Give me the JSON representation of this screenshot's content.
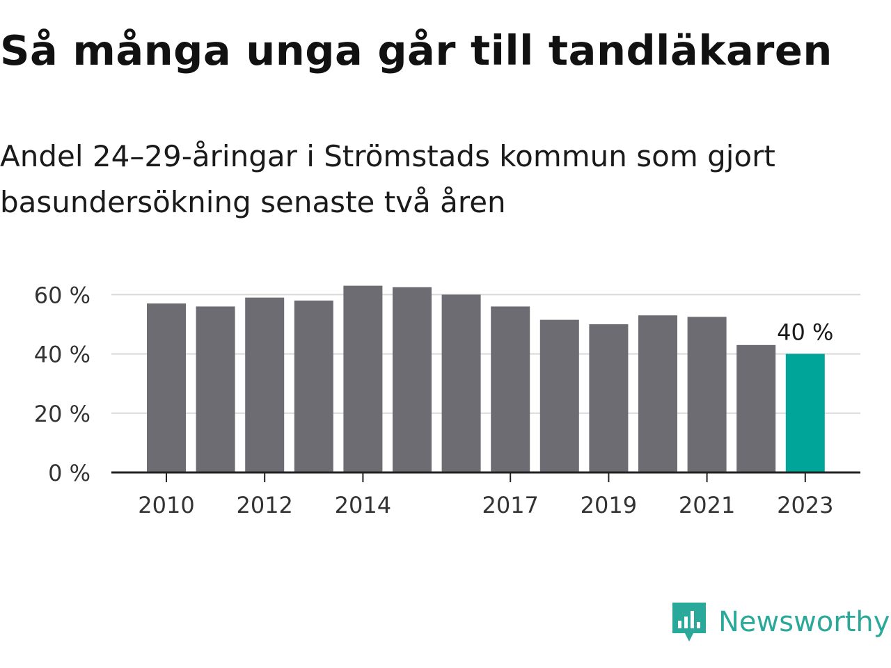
{
  "title": "Så många unga går till tandläkaren",
  "subtitle": "Andel 24–29-åringar i Strömstads kommun som gjort basundersökning senaste två åren",
  "brand": {
    "name": "Newsworthy",
    "color": "#2aa89a"
  },
  "colors": {
    "bar": "#6d6c72",
    "highlight": "#00a59a",
    "grid": "#d9d9d9",
    "axis": "#222222",
    "text": "#333333"
  },
  "chart_data": {
    "type": "bar",
    "categories": [
      "2010",
      "2011",
      "2012",
      "2013",
      "2014",
      "2015",
      "2016",
      "2017",
      "2018",
      "2019",
      "2020",
      "2021",
      "2022",
      "2023"
    ],
    "values": [
      57,
      56,
      59,
      58,
      63,
      62.5,
      60,
      56,
      51.5,
      50,
      53,
      52.5,
      43,
      40
    ],
    "x_tick_labels": [
      "2010",
      "2012",
      "2014",
      "2017",
      "2019",
      "2021",
      "2023"
    ],
    "y_ticks": [
      0,
      20,
      40,
      60
    ],
    "y_tick_labels": [
      "0 %",
      "20 %",
      "40 %",
      "60 %"
    ],
    "ylim": [
      0,
      60
    ],
    "grid": true,
    "highlight_category": "2023",
    "annotation": "40 %",
    "xlabel": "",
    "ylabel": ""
  }
}
